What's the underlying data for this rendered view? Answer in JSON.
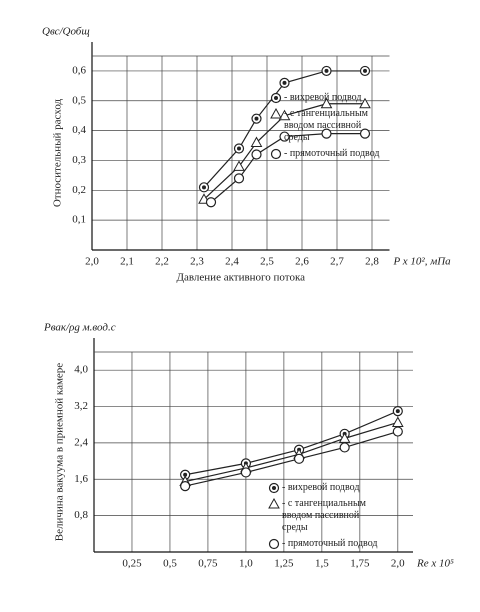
{
  "chart_data": [
    {
      "type": "line",
      "y_unit_label": "Qвс/Qобщ",
      "ylabel": "Относительный расход",
      "xlabel": "Давление активного потока",
      "x_unit_label": "P x 10², мПа",
      "xlim": [
        2.0,
        2.85
      ],
      "ylim": [
        0,
        0.65
      ],
      "grid": true,
      "xticks": [
        {
          "value": 2.0,
          "label": "2,0"
        },
        {
          "value": 2.1,
          "label": "2,1"
        },
        {
          "value": 2.2,
          "label": "2,2"
        },
        {
          "value": 2.3,
          "label": "2,3"
        },
        {
          "value": 2.4,
          "label": "2,4"
        },
        {
          "value": 2.5,
          "label": "2,5"
        },
        {
          "value": 2.6,
          "label": "2,6"
        },
        {
          "value": 2.7,
          "label": "2,7"
        },
        {
          "value": 2.8,
          "label": "2,8"
        }
      ],
      "yticks": [
        {
          "value": 0.1,
          "label": "0,1"
        },
        {
          "value": 0.2,
          "label": "0,2"
        },
        {
          "value": 0.3,
          "label": "0,3"
        },
        {
          "value": 0.4,
          "label": "0,4"
        },
        {
          "value": 0.5,
          "label": "0,5"
        },
        {
          "value": 0.6,
          "label": "0,6"
        }
      ],
      "series": [
        {
          "name": "- вихревой подвод",
          "color": "#222222",
          "marker": "dot-circle",
          "x": [
            2.32,
            2.42,
            2.47,
            2.55,
            2.67,
            2.78
          ],
          "values": [
            0.21,
            0.34,
            0.44,
            0.56,
            0.6,
            0.6
          ]
        },
        {
          "name": "- с тангенциальным вводом пассивной среды",
          "color": "#222222",
          "marker": "triangle",
          "x": [
            2.32,
            2.42,
            2.47,
            2.55,
            2.67,
            2.78
          ],
          "values": [
            0.17,
            0.28,
            0.36,
            0.45,
            0.49,
            0.49
          ]
        },
        {
          "name": "- прямоточный подвод",
          "color": "#222222",
          "marker": "circle",
          "x": [
            2.34,
            2.42,
            2.47,
            2.55,
            2.67,
            2.78
          ],
          "values": [
            0.16,
            0.24,
            0.32,
            0.38,
            0.39,
            0.39
          ]
        }
      ]
    },
    {
      "type": "line",
      "y_unit_label": "Pвак/ρg м.вод.с",
      "ylabel": "Величина вакуума в приемной камере",
      "x_unit_label": "Re x 10⁵",
      "xlim": [
        0,
        2.1
      ],
      "ylim": [
        0,
        4.4
      ],
      "grid": true,
      "xticks": [
        {
          "value": 0.25,
          "label": "0,25"
        },
        {
          "value": 0.5,
          "label": "0,5"
        },
        {
          "value": 0.75,
          "label": "0,75"
        },
        {
          "value": 1.0,
          "label": "1,0"
        },
        {
          "value": 1.25,
          "label": "1,25"
        },
        {
          "value": 1.5,
          "label": "1,5"
        },
        {
          "value": 1.75,
          "label": "1,75"
        },
        {
          "value": 2.0,
          "label": "2,0"
        }
      ],
      "yticks": [
        {
          "value": 0.8,
          "label": "0,8"
        },
        {
          "value": 1.6,
          "label": "1,6"
        },
        {
          "value": 2.4,
          "label": "2,4"
        },
        {
          "value": 3.2,
          "label": "3,2"
        },
        {
          "value": 4.0,
          "label": "4,0"
        }
      ],
      "series": [
        {
          "name": "- вихревой подвод",
          "color": "#222222",
          "marker": "dot-circle",
          "x": [
            0.6,
            1.0,
            1.35,
            1.65,
            2.0
          ],
          "values": [
            1.7,
            1.95,
            2.25,
            2.6,
            3.1
          ]
        },
        {
          "name": "- с тангенциальным вводом пассивной среды",
          "color": "#222222",
          "marker": "triangle",
          "x": [
            0.6,
            1.0,
            1.35,
            1.65,
            2.0
          ],
          "values": [
            1.55,
            1.85,
            2.15,
            2.5,
            2.85
          ]
        },
        {
          "name": "- прямоточный подвод",
          "color": "#222222",
          "marker": "circle",
          "x": [
            0.6,
            1.0,
            1.35,
            1.65,
            2.0
          ],
          "values": [
            1.45,
            1.75,
            2.05,
            2.3,
            2.65
          ]
        }
      ]
    }
  ]
}
